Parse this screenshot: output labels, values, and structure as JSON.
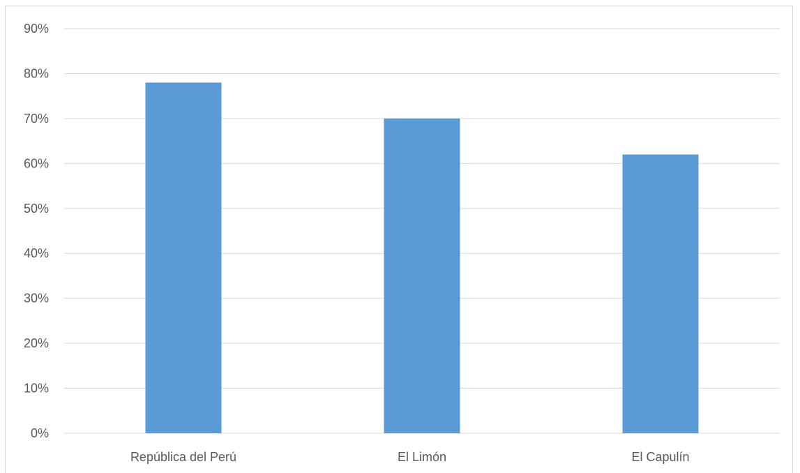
{
  "chart_data": {
    "type": "bar",
    "categories": [
      "República del Perú",
      "El Limón",
      "El Capulín"
    ],
    "values": [
      78,
      70,
      62
    ],
    "value_format": "percent",
    "ylim": [
      0,
      90
    ],
    "yticks": [
      "0%",
      "10%",
      "20%",
      "30%",
      "40%",
      "50%",
      "60%",
      "70%",
      "80%",
      "90%"
    ],
    "title": "",
    "xlabel": "",
    "ylabel": "",
    "grid": true,
    "legend": "none",
    "colors": {
      "bar": "#5b9bd5",
      "grid": "#d9d9d9",
      "text": "#595959"
    }
  }
}
